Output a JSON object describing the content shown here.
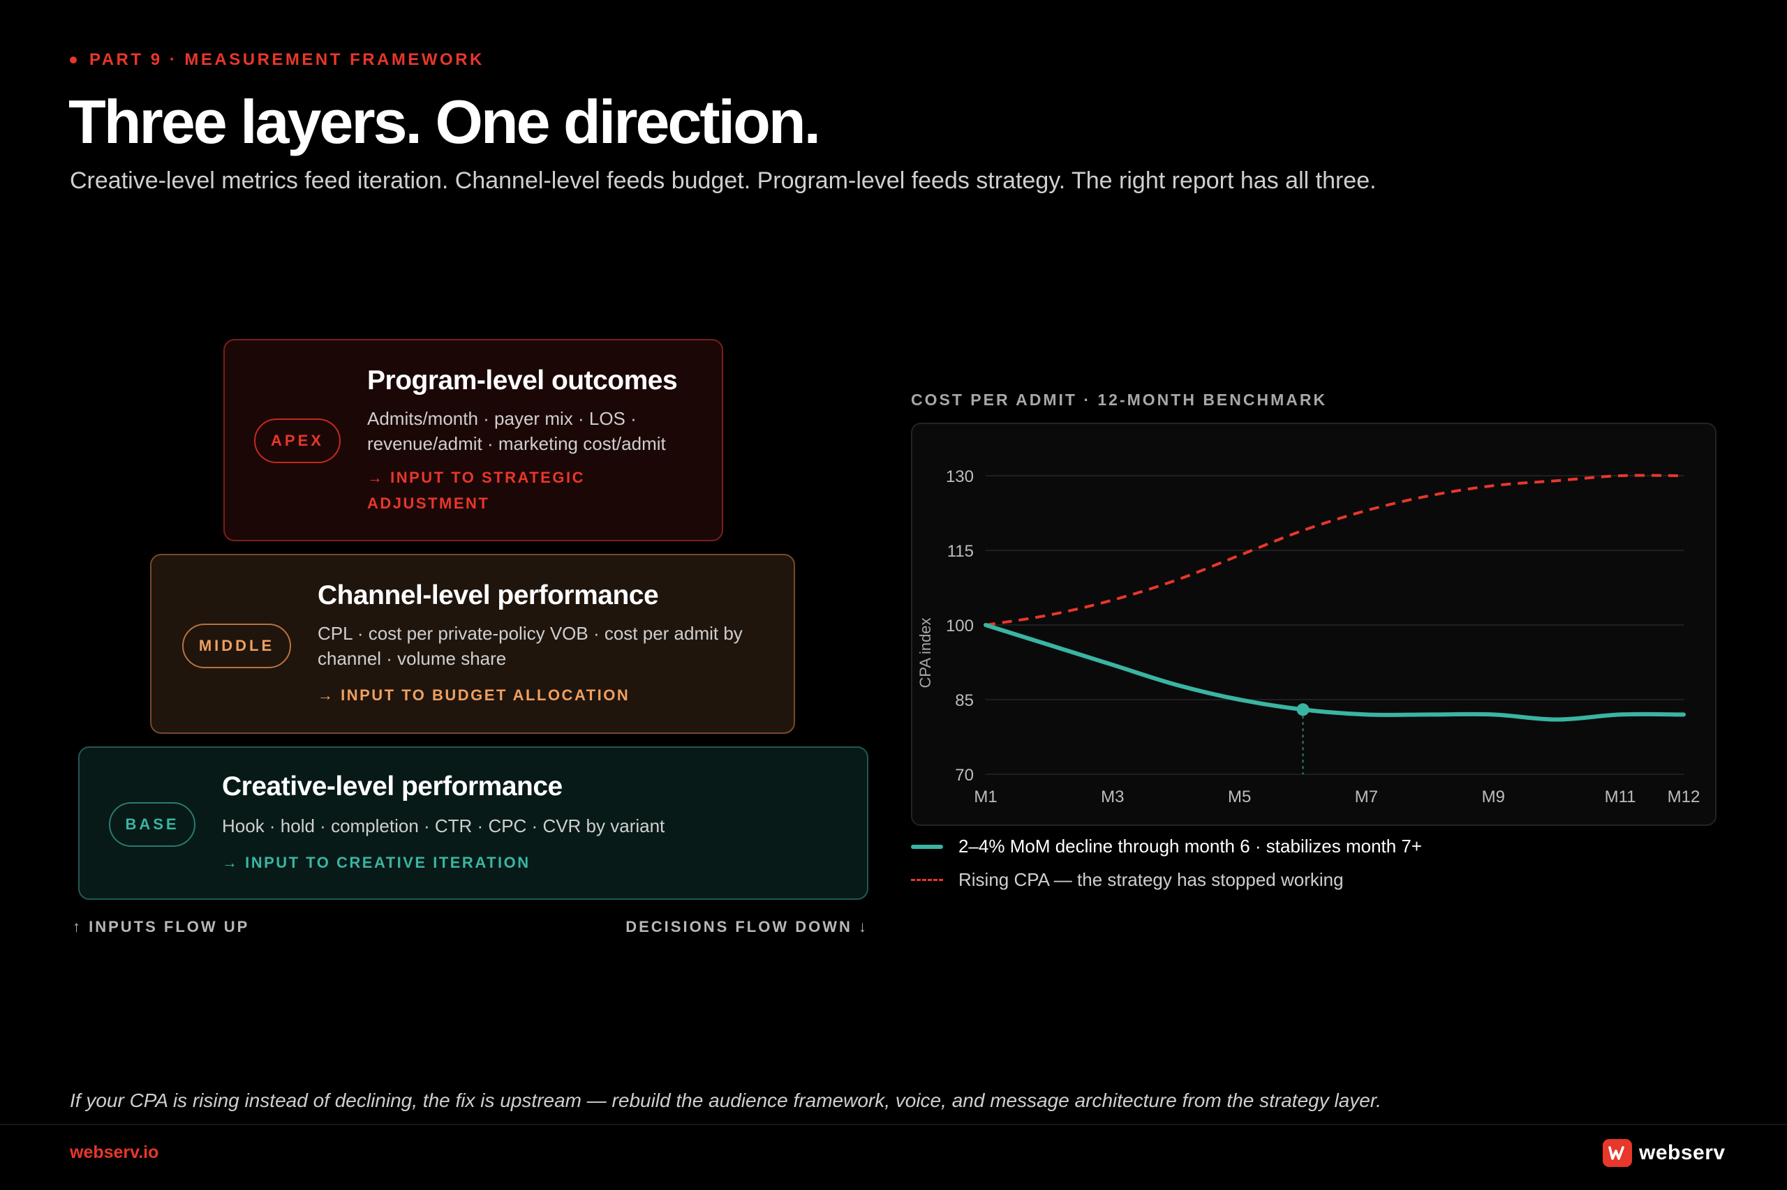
{
  "header": {
    "eyebrow": "PART 9 · MEASUREMENT FRAMEWORK",
    "title": "Three layers. One direction.",
    "subtitle": "Creative-level metrics feed iteration. Channel-level feeds budget. Program-level feeds strategy. The right report has all three."
  },
  "layers": {
    "apex": {
      "badge": "APEX",
      "title": "Program-level outcomes",
      "description": "Admits/month · payer mix · LOS · revenue/admit · marketing cost/admit",
      "cta": "→ INPUT TO STRATEGIC ADJUSTMENT"
    },
    "middle": {
      "badge": "MIDDLE",
      "title": "Channel-level performance",
      "description": "CPL · cost per private-policy VOB · cost per admit by channel · volume share",
      "cta": "→ INPUT TO BUDGET ALLOCATION"
    },
    "base": {
      "badge": "BASE",
      "title": "Creative-level performance",
      "description": "Hook · hold · completion · CTR · CPC · CVR by variant",
      "cta": "→ INPUT TO CREATIVE ITERATION"
    }
  },
  "flow": {
    "up": "↑ INPUTS FLOW UP",
    "down": "DECISIONS FLOW DOWN ↓"
  },
  "chart_data": {
    "type": "line",
    "title": "COST PER ADMIT · 12-MONTH BENCHMARK",
    "xlabel": "",
    "ylabel": "CPA index",
    "x": [
      1,
      2,
      3,
      4,
      5,
      6,
      7,
      8,
      9,
      10,
      11,
      12
    ],
    "x_tick_values": [
      1,
      3,
      5,
      7,
      9,
      11,
      12
    ],
    "x_tick_labels": [
      "M1",
      "M3",
      "M5",
      "M7",
      "M9",
      "M11",
      "M12"
    ],
    "y_ticks": [
      70,
      85,
      100,
      115,
      130
    ],
    "ylim": [
      70,
      130
    ],
    "xlim": [
      1,
      12
    ],
    "grid": true,
    "series": [
      {
        "name": "2–4% MoM decline through month 6 · stabilizes month 7+",
        "values": [
          100,
          96,
          92,
          88,
          85,
          83,
          82,
          82,
          82,
          81,
          82,
          82
        ],
        "color": "#3ab5a2",
        "style": "solid",
        "marker_at_x": 6
      },
      {
        "name": "Rising CPA — the strategy has stopped working",
        "values": [
          100,
          102,
          105,
          109,
          114,
          119,
          123,
          126,
          128,
          129,
          130,
          130
        ],
        "color": "#e8372b",
        "style": "dashed"
      }
    ],
    "legend_position": "bottom-left"
  },
  "footer": {
    "note": "If your CPA is rising instead of declining, the fix is upstream — rebuild the audience framework, voice, and message architecture from the strategy layer.",
    "url": "webserv.io",
    "brand": "webserv"
  },
  "colors": {
    "accent": "#e8372b",
    "amber": "#f0a060",
    "teal": "#3ab5a2",
    "background": "#000000"
  }
}
